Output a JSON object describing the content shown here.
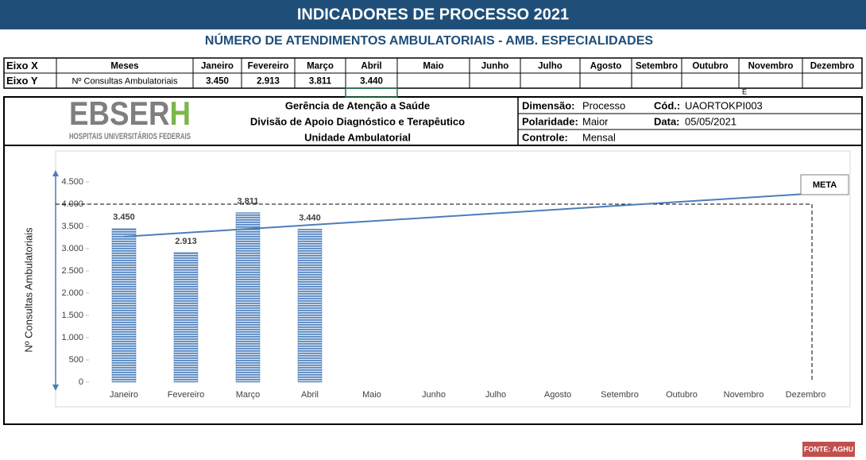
{
  "header": {
    "title": "INDICADORES DE PROCESSO 2021",
    "subtitle": "NÚMERO DE ATENDIMENTOS AMBULATORIAIS - AMB. ESPECIALIDADES"
  },
  "table": {
    "header": [
      "Eixo X",
      "Meses",
      "Janeiro",
      "Fevereiro",
      "Março",
      "Abril",
      "Maio",
      "Junho",
      "Julho",
      "Agosto",
      "Setembro",
      "Outubro",
      "Novembro",
      "Dezembro"
    ],
    "row": [
      "Eixo Y",
      "Nº Consultas Ambulatoriais",
      "3.450",
      "2.913",
      "3.811",
      "3.440"
    ]
  },
  "stray_mark": "E",
  "logo": {
    "main": "EBSER",
    "accent": "H",
    "tagline": "HOSPITAIS UNIVERSITÁRIOS FEDERAIS"
  },
  "info": {
    "org": [
      "Gerência de Atenção a Saúde",
      "Divisão de Apoio Diagnóstico e Terapêutico",
      "Unidade Ambulatorial"
    ],
    "fields": [
      {
        "label": "Dimensão:",
        "value": "Processo"
      },
      {
        "label": "Cód.:",
        "value": "UAORTOKPI003"
      },
      {
        "label": "Polaridade:",
        "value": "Maior"
      },
      {
        "label": "Data:",
        "value": "05/05/2021"
      },
      {
        "label": "Controle:",
        "value": "Mensal"
      }
    ]
  },
  "chart_data": {
    "type": "bar",
    "y_label": "Nº Consultas Ambulatoriais",
    "categories": [
      "Janeiro",
      "Fevereiro",
      "Março",
      "Abril",
      "Maio",
      "Junho",
      "Julho",
      "Agosto",
      "Setembro",
      "Outubro",
      "Novembro",
      "Dezembro"
    ],
    "values": [
      3450,
      2913,
      3811,
      3440,
      null,
      null,
      null,
      null,
      null,
      null,
      null,
      null
    ],
    "value_labels": [
      "3.450",
      "2.913",
      "3.811",
      "3.440",
      null,
      null,
      null,
      null,
      null,
      null,
      null,
      null
    ],
    "color": "#4f81bd",
    "ylim": [
      0,
      4500
    ],
    "yticks": [
      0,
      500,
      {
        "value": 1000,
        "label": "1.000"
      },
      {
        "value": 1500,
        "label": "1.500"
      },
      {
        "value": 2000,
        "label": "2.000"
      },
      {
        "value": 2500,
        "label": "2.500"
      },
      {
        "value": 3000,
        "label": "3.000"
      },
      {
        "value": 3500,
        "label": "3.500"
      },
      {
        "value": 4000,
        "label": "4.000"
      },
      {
        "value": 4500,
        "label": "4.500"
      }
    ],
    "meta": {
      "label": "META",
      "value": 4000
    },
    "trend_line": [
      3270,
      4230
    ]
  },
  "footer": "FONTE: AGHU"
}
